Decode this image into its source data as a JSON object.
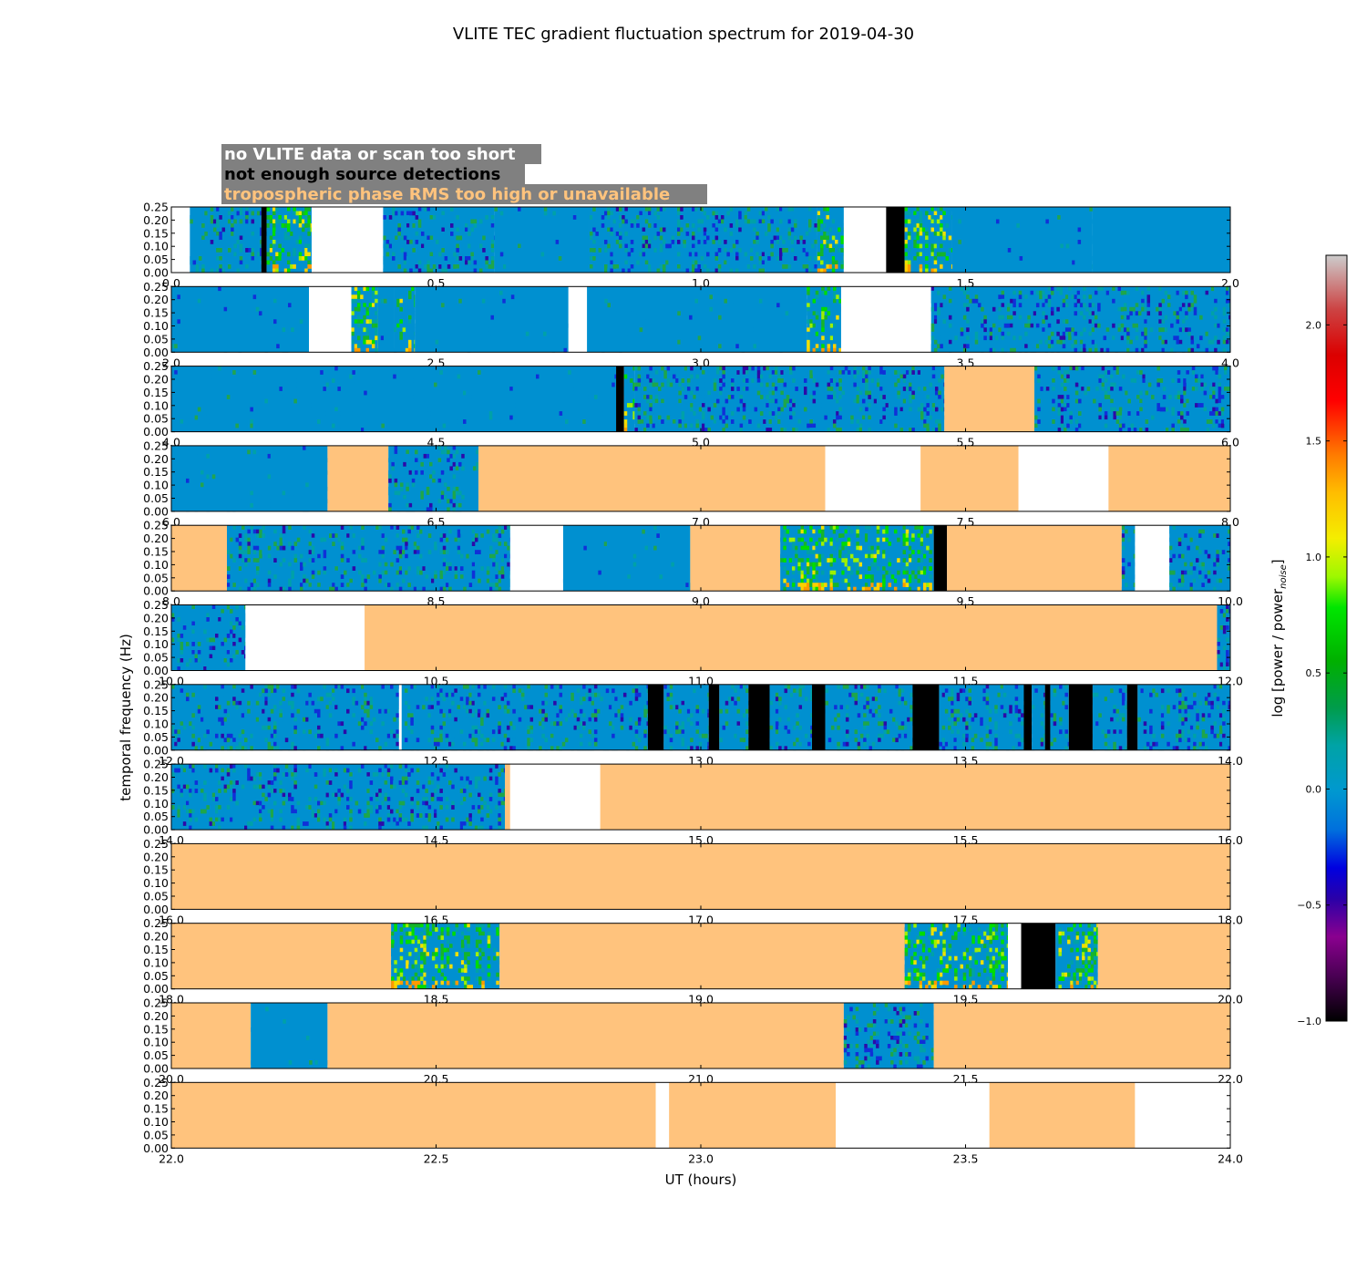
{
  "chart_data": {
    "type": "heatmap",
    "title": "VLITE TEC gradient fluctuation spectrum for 2019-04-30",
    "xlabel": "UT (hours)",
    "ylabel": "temporal frequency (Hz)",
    "ylim": [
      0,
      0.25
    ],
    "yticks": [
      "0.00",
      "0.05",
      "0.10",
      "0.15",
      "0.20",
      "0.25"
    ],
    "colorbar": {
      "label": "log [power / power",
      "label_sub": "noise",
      "label_end": "]",
      "range": [
        -1.0,
        2.3
      ],
      "ticks": [
        "−1.0",
        "−0.5",
        "0.0",
        "0.5",
        "1.0",
        "1.5",
        "2.0"
      ],
      "tick_values": [
        -1.0,
        -0.5,
        0.0,
        0.5,
        1.0,
        1.5,
        2.0
      ]
    },
    "legend": {
      "placement": "top-left",
      "entries": [
        {
          "text": "no VLITE data or scan too short",
          "state": "no_data",
          "text_color": "#ffffff"
        },
        {
          "text": "not enough source detections",
          "state": "insufficient",
          "text_color": "#000000"
        },
        {
          "text": "tropospheric phase RMS too high or unavailable",
          "state": "tropo",
          "text_color": "#ffc37d"
        }
      ]
    },
    "state_colors": {
      "no_data": "#ffffff",
      "insufficient": "#000000",
      "tropo": "#ffc37d",
      "background": "#0090d0"
    },
    "panels": [
      {
        "range": [
          0,
          2
        ],
        "ticks": [
          "0.0",
          "0.5",
          "1.0",
          "1.5",
          "2.0"
        ],
        "segments": [
          [
            0.0,
            0.035,
            "no_data"
          ],
          [
            0.035,
            0.17,
            "data_busy"
          ],
          [
            0.17,
            0.18,
            "insufficient"
          ],
          [
            0.18,
            0.265,
            "data_hot"
          ],
          [
            0.265,
            0.4,
            "no_data"
          ],
          [
            0.4,
            0.61,
            "data_busy"
          ],
          [
            0.61,
            0.79,
            "data_sparse"
          ],
          [
            0.79,
            1.22,
            "data_busy"
          ],
          [
            1.22,
            1.27,
            "data_hot"
          ],
          [
            1.27,
            1.35,
            "no_data"
          ],
          [
            1.35,
            1.385,
            "insufficient"
          ],
          [
            1.385,
            1.475,
            "data_hot"
          ],
          [
            1.475,
            1.74,
            "data_sparse"
          ],
          [
            1.74,
            2.0,
            "data_quiet"
          ]
        ]
      },
      {
        "range": [
          2,
          4
        ],
        "ticks": [
          "2.0",
          "2.5",
          "3.0",
          "3.5",
          "4.0"
        ],
        "segments": [
          [
            2.0,
            2.26,
            "data_sparse"
          ],
          [
            2.26,
            2.34,
            "no_data"
          ],
          [
            2.34,
            2.39,
            "data_hot"
          ],
          [
            2.39,
            2.42,
            "data_sparse"
          ],
          [
            2.42,
            2.46,
            "data_hot"
          ],
          [
            2.46,
            2.75,
            "data_sparse"
          ],
          [
            2.75,
            2.785,
            "no_data"
          ],
          [
            2.785,
            3.2,
            "data_sparse"
          ],
          [
            3.2,
            3.265,
            "data_hot"
          ],
          [
            3.265,
            3.435,
            "no_data"
          ],
          [
            3.435,
            4.0,
            "data_busy"
          ]
        ]
      },
      {
        "range": [
          4,
          6
        ],
        "ticks": [
          "4.0",
          "4.5",
          "5.0",
          "5.5",
          "6.0"
        ],
        "segments": [
          [
            4.0,
            4.84,
            "data_sparse"
          ],
          [
            4.84,
            4.855,
            "insufficient"
          ],
          [
            4.855,
            4.875,
            "data_hot"
          ],
          [
            4.875,
            5.46,
            "data_busy"
          ],
          [
            5.46,
            5.63,
            "tropo"
          ],
          [
            5.63,
            6.0,
            "data_busy"
          ]
        ]
      },
      {
        "range": [
          6,
          8
        ],
        "ticks": [
          "6.0",
          "6.5",
          "7.0",
          "7.5",
          "8.0"
        ],
        "segments": [
          [
            6.0,
            6.295,
            "data_sparse"
          ],
          [
            6.295,
            6.41,
            "tropo"
          ],
          [
            6.41,
            6.58,
            "data_busy"
          ],
          [
            6.58,
            7.235,
            "tropo"
          ],
          [
            7.235,
            7.415,
            "no_data"
          ],
          [
            7.415,
            7.6,
            "tropo"
          ],
          [
            7.6,
            7.77,
            "no_data"
          ],
          [
            7.77,
            8.0,
            "tropo"
          ]
        ]
      },
      {
        "range": [
          8,
          10
        ],
        "ticks": [
          "8.0",
          "8.5",
          "9.0",
          "9.5",
          "10.0"
        ],
        "segments": [
          [
            8.0,
            8.105,
            "tropo"
          ],
          [
            8.105,
            8.64,
            "data_busy"
          ],
          [
            8.64,
            8.74,
            "no_data"
          ],
          [
            8.74,
            8.98,
            "data_sparse"
          ],
          [
            8.98,
            9.15,
            "tropo"
          ],
          [
            9.15,
            9.44,
            "data_hot"
          ],
          [
            9.44,
            9.465,
            "insufficient"
          ],
          [
            9.465,
            9.795,
            "tropo"
          ],
          [
            9.795,
            9.82,
            "data_busy"
          ],
          [
            9.82,
            9.885,
            "no_data"
          ],
          [
            9.885,
            10.0,
            "data_busy"
          ]
        ]
      },
      {
        "range": [
          10,
          12
        ],
        "ticks": [
          "10.0",
          "10.5",
          "11.0",
          "11.5",
          "12.0"
        ],
        "segments": [
          [
            10.0,
            10.14,
            "data_busy"
          ],
          [
            10.14,
            10.365,
            "no_data"
          ],
          [
            10.365,
            11.975,
            "tropo"
          ],
          [
            11.975,
            12.0,
            "data_busy"
          ]
        ]
      },
      {
        "range": [
          12,
          14
        ],
        "ticks": [
          "12.0",
          "12.5",
          "13.0",
          "13.5",
          "14.0"
        ],
        "segments": [
          [
            12.0,
            12.43,
            "data_busy"
          ],
          [
            12.43,
            12.435,
            "no_data"
          ],
          [
            12.435,
            12.9,
            "data_busy"
          ],
          [
            12.9,
            12.93,
            "insufficient"
          ],
          [
            12.93,
            13.015,
            "data_busy"
          ],
          [
            13.015,
            13.035,
            "insufficient"
          ],
          [
            13.035,
            13.09,
            "data_busy"
          ],
          [
            13.09,
            13.13,
            "insufficient"
          ],
          [
            13.13,
            13.21,
            "data_busy"
          ],
          [
            13.21,
            13.235,
            "insufficient"
          ],
          [
            13.235,
            13.4,
            "data_busy"
          ],
          [
            13.4,
            13.45,
            "insufficient"
          ],
          [
            13.45,
            13.61,
            "data_busy"
          ],
          [
            13.61,
            13.625,
            "insufficient"
          ],
          [
            13.625,
            13.65,
            "data_busy"
          ],
          [
            13.65,
            13.66,
            "insufficient"
          ],
          [
            13.66,
            13.695,
            "data_busy"
          ],
          [
            13.695,
            13.74,
            "insufficient"
          ],
          [
            13.74,
            13.805,
            "data_busy"
          ],
          [
            13.805,
            13.825,
            "insufficient"
          ],
          [
            13.825,
            14.0,
            "data_busy"
          ]
        ]
      },
      {
        "range": [
          14,
          16
        ],
        "ticks": [
          "14.0",
          "14.5",
          "15.0",
          "15.5",
          "16.0"
        ],
        "segments": [
          [
            14.0,
            14.63,
            "data_busy"
          ],
          [
            14.63,
            14.64,
            "tropo"
          ],
          [
            14.64,
            14.81,
            "no_data"
          ],
          [
            14.81,
            16.0,
            "tropo"
          ]
        ]
      },
      {
        "range": [
          16,
          18
        ],
        "ticks": [
          "16.0",
          "16.5",
          "17.0",
          "17.5",
          "18.0"
        ],
        "segments": [
          [
            16.0,
            18.0,
            "tropo"
          ]
        ]
      },
      {
        "range": [
          18,
          20
        ],
        "ticks": [
          "18.0",
          "18.5",
          "19.0",
          "19.5",
          "20.0"
        ],
        "segments": [
          [
            18.0,
            18.415,
            "tropo"
          ],
          [
            18.415,
            18.62,
            "data_hot"
          ],
          [
            18.62,
            19.385,
            "tropo"
          ],
          [
            19.385,
            19.58,
            "data_hot"
          ],
          [
            19.58,
            19.605,
            "no_data"
          ],
          [
            19.605,
            19.67,
            "insufficient"
          ],
          [
            19.67,
            19.75,
            "data_hot"
          ],
          [
            19.75,
            20.0,
            "tropo"
          ]
        ]
      },
      {
        "range": [
          20,
          22
        ],
        "ticks": [
          "20.0",
          "20.5",
          "21.0",
          "21.5",
          "22.0"
        ],
        "segments": [
          [
            20.0,
            20.15,
            "tropo"
          ],
          [
            20.15,
            20.295,
            "data_sparse"
          ],
          [
            20.295,
            21.27,
            "tropo"
          ],
          [
            21.27,
            21.44,
            "data_busy"
          ],
          [
            21.44,
            22.0,
            "tropo"
          ]
        ]
      },
      {
        "range": [
          22,
          24
        ],
        "ticks": [
          "22.0",
          "22.5",
          "23.0",
          "23.5",
          "24.0"
        ],
        "segments": [
          [
            22.0,
            22.915,
            "tropo"
          ],
          [
            22.915,
            22.94,
            "no_data"
          ],
          [
            22.94,
            23.255,
            "tropo"
          ],
          [
            23.255,
            23.545,
            "no_data"
          ],
          [
            23.545,
            23.82,
            "tropo"
          ],
          [
            23.82,
            24.0,
            "no_data"
          ]
        ]
      }
    ]
  }
}
